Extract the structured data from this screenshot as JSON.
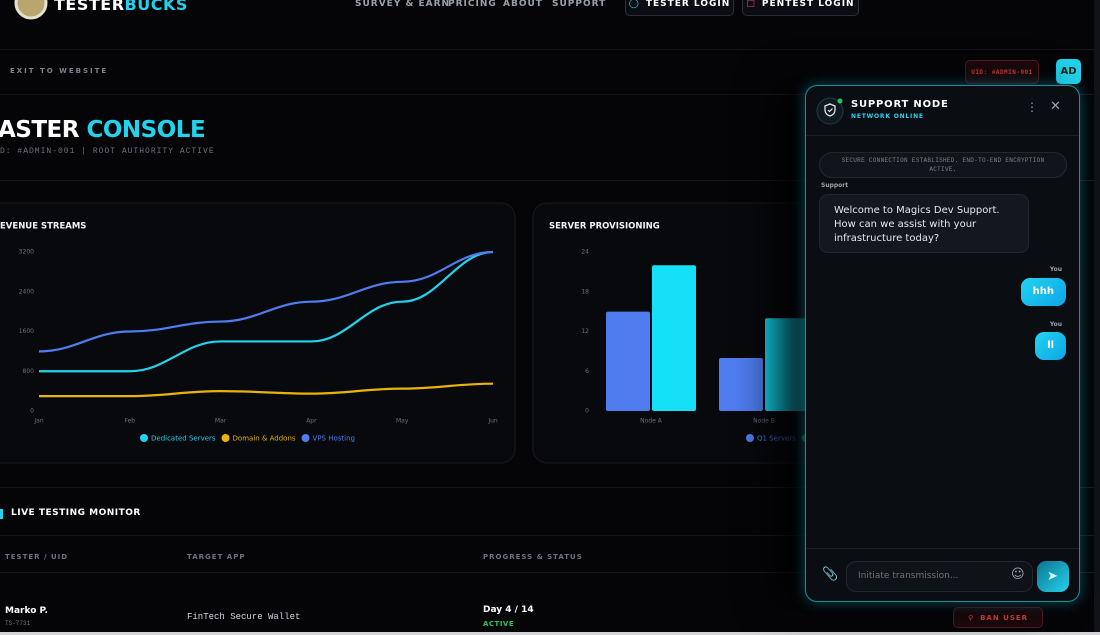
{
  "nav": {
    "brand_a": "TESTER",
    "brand_b": "BUCKS",
    "links": [
      "SURVEY & EARN",
      "PRICING",
      "ABOUT",
      "SUPPORT"
    ],
    "tester_login": "TESTER LOGIN",
    "pentest_login": "PENTEST LOGIN"
  },
  "topbar": {
    "exit": "EXIT TO WEBSITE",
    "uid": "UID: #ADMIN-001",
    "avatar": "AD"
  },
  "header": {
    "title_a": "ASTER",
    "title_b": "CONSOLE",
    "subtitle": "D: #ADMIN-001 | ROOT AUTHORITY ACTIVE"
  },
  "charts": [
    {
      "type": "line",
      "title": "EVENUE STREAMS",
      "categories": [
        "Jan",
        "Feb",
        "Mar",
        "Apr",
        "May",
        "Jun"
      ],
      "series": [
        {
          "name": "Dedicated Servers",
          "color": "#22d3ee",
          "values": [
            800,
            800,
            1400,
            1400,
            2200,
            3200
          ]
        },
        {
          "name": "Domain & Addons",
          "color": "#eab308",
          "values": [
            300,
            300,
            400,
            350,
            450,
            550
          ]
        },
        {
          "name": "VPS Hosting",
          "color": "#4f7df0",
          "values": [
            1200,
            1600,
            1800,
            2200,
            2600,
            3200
          ]
        }
      ],
      "ylim": [
        0,
        3200
      ],
      "yticks": [
        0,
        800,
        1600,
        2400,
        3200
      ]
    },
    {
      "type": "bar",
      "title": "SERVER PROVISIONING",
      "categories": [
        "Node A",
        "Node B"
      ],
      "series": [
        {
          "name": "Q1 Servers",
          "color": "#4f7df0",
          "values": [
            15,
            8
          ]
        },
        {
          "name": null,
          "color": "#14e0f8",
          "values": [
            22,
            14
          ]
        }
      ],
      "ylim": [
        0,
        24
      ],
      "yticks": [
        0,
        6,
        12,
        18,
        24
      ]
    }
  ],
  "monitor": {
    "title": "LIVE TESTING MONITOR",
    "columns": [
      "TESTER / UID",
      "TARGET APP",
      "PROGRESS & STATUS"
    ],
    "rows": [
      {
        "name": "Marko P.",
        "uid": "TS-7731",
        "app": "FinTech Secure Wallet",
        "progress": "Day 4 / 14",
        "status": "ACTIVE",
        "action": "BAN USER"
      }
    ]
  },
  "chat": {
    "title": "SUPPORT NODE",
    "status": "NETWORK ONLINE",
    "system": "SECURE CONNECTION ESTABLISHED. END-TO-END ENCRYPTION ACTIVE.",
    "messages": [
      {
        "sender": "Support",
        "text": "Welcome to Magics Dev Support. How can we assist with your infrastructure today?"
      },
      {
        "sender": "You",
        "text": "hhh"
      },
      {
        "sender": "You",
        "text": "ll"
      }
    ],
    "placeholder": "Initiate transmission..."
  }
}
